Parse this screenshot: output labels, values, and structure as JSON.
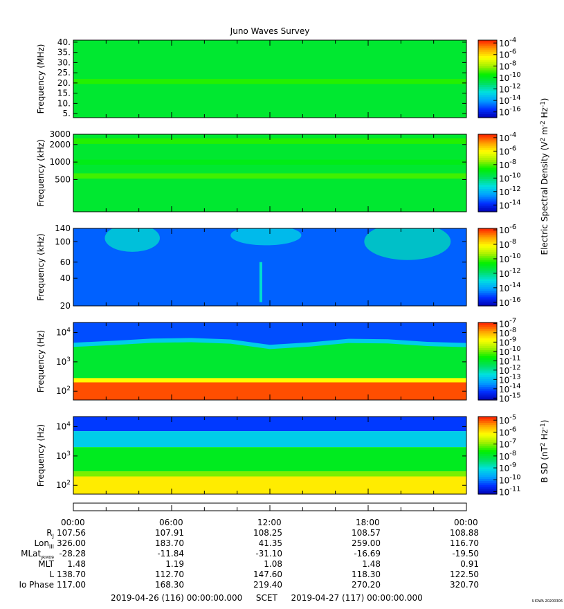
{
  "title": "Juno Waves Survey",
  "colors": {
    "colormap": [
      "#0000b0",
      "#0030ff",
      "#00a0ff",
      "#00e0e0",
      "#00e060",
      "#00f000",
      "#a0f000",
      "#ffff00",
      "#ffa000",
      "#ff2000"
    ]
  },
  "chart_data": [
    {
      "type": "heatmap",
      "panel": "hfwbr",
      "ylabel": "Frequency (MHz)",
      "yscale": "linear",
      "ylim": [
        3,
        41
      ],
      "y_ticks": [
        "40.",
        "35.",
        "30.",
        "25.",
        "20.",
        "15.",
        "10.",
        "5."
      ],
      "y_tick_values": [
        40,
        35,
        30,
        25,
        20,
        15,
        10,
        5
      ],
      "colorbar": {
        "scale": "log",
        "ticks": [
          "-4",
          "-6",
          "-8",
          "-10",
          "-12",
          "-14",
          "-16"
        ],
        "tick_exponents": [
          -4,
          -6,
          -8,
          -10,
          -12,
          -14,
          -16
        ],
        "range": [
          -17,
          -3.5
        ]
      },
      "features": [
        {
          "type": "background",
          "level": 0.5
        },
        {
          "type": "band",
          "y": [
            19.5,
            22
          ],
          "level": 0.58
        }
      ]
    },
    {
      "type": "heatmap",
      "panel": "hfr",
      "ylabel": "Frequency (kHz)",
      "yscale": "log",
      "ylim": [
        140,
        3000
      ],
      "y_ticks": [
        "3000",
        "2000",
        "1000",
        "500"
      ],
      "y_tick_values": [
        3000,
        2000,
        1000,
        500
      ],
      "colorbar": {
        "scale": "log",
        "ticks": [
          "-4",
          "-6",
          "-8",
          "-10",
          "-12",
          "-14"
        ],
        "tick_exponents": [
          -4,
          -6,
          -8,
          -10,
          -12,
          -14
        ],
        "range": [
          -15,
          -3.5
        ]
      },
      "features": [
        {
          "type": "background",
          "level": 0.5
        },
        {
          "type": "band",
          "y": [
            2050,
            2550
          ],
          "level": 0.58
        },
        {
          "type": "band",
          "y": [
            900,
            1100
          ],
          "level": 0.53
        },
        {
          "type": "band",
          "y": [
            520,
            640
          ],
          "level": 0.6
        }
      ]
    },
    {
      "type": "heatmap",
      "panel": "lfrh",
      "ylabel": "Frequency (kHz)",
      "yscale": "log",
      "ylim": [
        20,
        140
      ],
      "y_ticks": [
        "140",
        "100",
        "60",
        "40",
        "20"
      ],
      "y_tick_values": [
        140,
        100,
        60,
        40,
        20
      ],
      "colorbar": {
        "scale": "log",
        "ticks": [
          "-6",
          "-8",
          "-10",
          "-12",
          "-14",
          "-16"
        ],
        "tick_exponents": [
          -6,
          -8,
          -10,
          -12,
          -14,
          -16
        ],
        "range": [
          -16.5,
          -5.8
        ]
      },
      "features": [
        {
          "type": "background",
          "level": 0.16
        },
        {
          "type": "patch",
          "x": [
            0.08,
            0.22
          ],
          "y": [
            70,
            140
          ],
          "level": 0.35
        },
        {
          "type": "patch",
          "x": [
            0.4,
            0.58
          ],
          "y": [
            85,
            140
          ],
          "level": 0.32
        },
        {
          "type": "patch",
          "x": [
            0.74,
            0.96
          ],
          "y": [
            55,
            140
          ],
          "level": 0.37
        },
        {
          "type": "streak",
          "x": 0.477,
          "y": [
            22,
            60
          ],
          "level": 0.35
        }
      ]
    },
    {
      "type": "heatmap",
      "panel": "lfrl",
      "ylabel": "Frequency (Hz)",
      "yscale": "log",
      "ylim": [
        50,
        22000
      ],
      "y_ticks": [
        "10",
        "10",
        "10"
      ],
      "y_tick_exponents": [
        "4",
        "3",
        "2"
      ],
      "y_tick_values": [
        10000,
        1000,
        100
      ],
      "colorbar": {
        "scale": "log",
        "ticks": [
          "-7",
          "-8",
          "-9",
          "-10",
          "-11",
          "-12",
          "-13",
          "-14",
          "-15"
        ],
        "tick_exponents": [
          -7,
          -8,
          -9,
          -10,
          -11,
          -12,
          -13,
          -14,
          -15
        ],
        "range": [
          -15.2,
          -6.9
        ]
      },
      "features": [
        {
          "type": "boundary",
          "x": [
            0,
            0.1,
            0.2,
            0.3,
            0.4,
            0.5,
            0.6,
            0.7,
            0.8,
            0.9,
            1.0
          ],
          "y": [
            4500,
            5200,
            6200,
            6500,
            5800,
            3800,
            4600,
            6100,
            5900,
            4800,
            4400
          ]
        },
        {
          "type": "band",
          "y": [
            50,
            200
          ],
          "level": 0.96
        },
        {
          "type": "band",
          "y": [
            200,
            280
          ],
          "level": 0.78
        }
      ]
    },
    {
      "type": "heatmap",
      "panel": "magnetic",
      "ylabel": "Frequency (Hz)",
      "yscale": "log",
      "ylim": [
        50,
        22000
      ],
      "y_ticks": [
        "10",
        "10",
        "10"
      ],
      "y_tick_exponents": [
        "4",
        "3",
        "2"
      ],
      "y_tick_values": [
        10000,
        1000,
        100
      ],
      "colorbar": {
        "scale": "log",
        "ticks": [
          "-5",
          "-6",
          "-7",
          "-8",
          "-9",
          "-10",
          "-11"
        ],
        "tick_exponents": [
          -5,
          -6,
          -7,
          -8,
          -9,
          -10,
          -11
        ],
        "range": [
          -11.2,
          -4.7
        ]
      },
      "features": [
        {
          "type": "band",
          "y": [
            7000,
            22000
          ],
          "level": 0.12
        },
        {
          "type": "band",
          "y": [
            2000,
            7000
          ],
          "level": 0.3
        },
        {
          "type": "band",
          "y": [
            300,
            2000
          ],
          "level": 0.52
        },
        {
          "type": "band",
          "y": [
            200,
            300
          ],
          "level": 0.64
        },
        {
          "type": "band",
          "y": [
            50,
            200
          ],
          "level": 0.8
        }
      ]
    }
  ],
  "colorbar_labels": {
    "electric": "Electric Spectral Density (V",
    "electric_sup1": "2",
    "electric_mid": " m",
    "electric_sup2": "-2",
    "electric_mid2": " Hz",
    "electric_sup3": "-1",
    "electric_end": ")",
    "magnetic": "B SD (nT",
    "magnetic_sup1": "2",
    "magnetic_mid": " Hz",
    "magnetic_sup2": "-1",
    "magnetic_end": ")"
  },
  "colorbar_base": "10",
  "time_axis": {
    "ticks": [
      "00:00",
      "06:00",
      "12:00",
      "18:00",
      "00:00"
    ],
    "tick_hours": [
      0,
      6,
      12,
      18,
      24
    ],
    "range_hours": [
      0,
      24
    ]
  },
  "ephemeris": [
    {
      "label": "R",
      "sub": "J",
      "values": [
        "107.56",
        "107.91",
        "108.25",
        "108.57",
        "108.88"
      ]
    },
    {
      "label": "Lon",
      "sub": "III",
      "values": [
        "326.00",
        "183.70",
        "41.35",
        "259.00",
        "116.70"
      ]
    },
    {
      "label": "MLat",
      "sub": "JRM09",
      "values": [
        "-28.28",
        "-11.84",
        "-31.10",
        "-16.69",
        "-19.50"
      ]
    },
    {
      "label": "MLT",
      "sub": "",
      "values": [
        "1.48",
        "1.19",
        "1.08",
        "1.48",
        "0.91"
      ]
    },
    {
      "label": "L",
      "sub": "",
      "values": [
        "138.70",
        "112.70",
        "147.60",
        "118.30",
        "122.50"
      ]
    },
    {
      "label": "Io Phase",
      "sub": "",
      "values": [
        "117.00",
        "168.30",
        "219.40",
        "270.20",
        "320.70"
      ]
    }
  ],
  "footer": {
    "start": "2019-04-26 (116) 00:00:00.000",
    "scet": "SCET",
    "end": "2019-04-27 (117) 00:00:00.000"
  },
  "stamp": "UIOWA 20200306"
}
